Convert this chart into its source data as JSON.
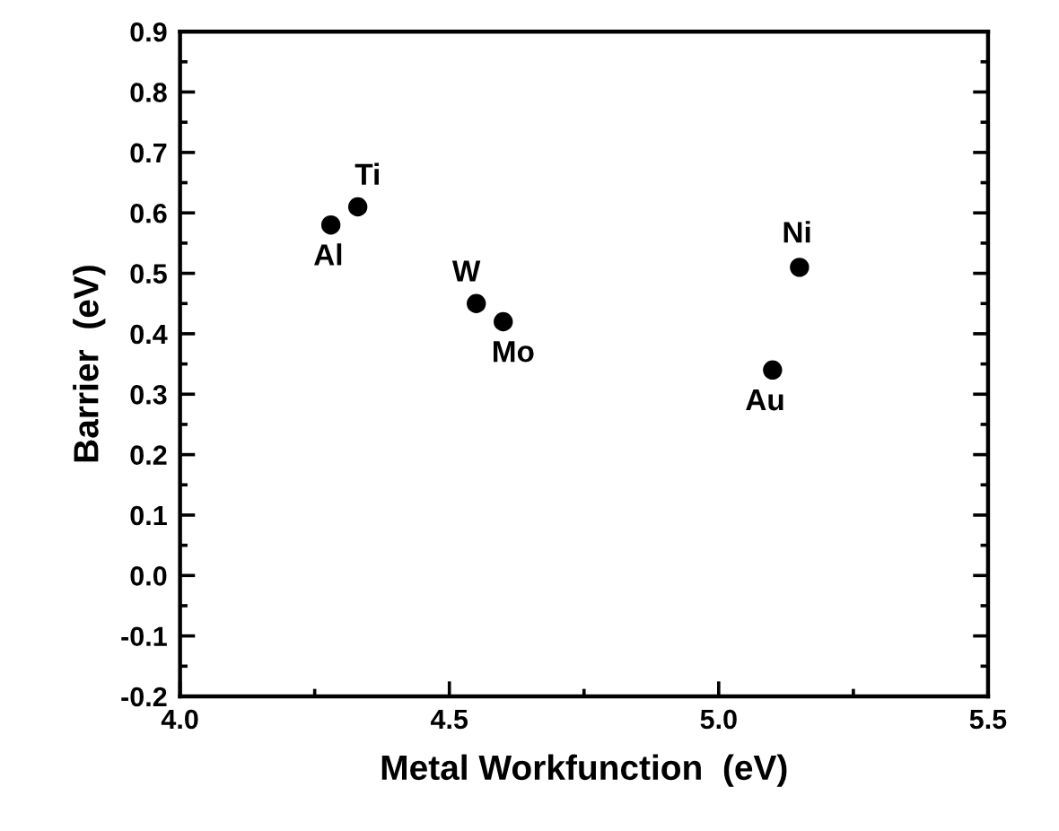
{
  "chart_data": {
    "type": "scatter",
    "xlabel": "Metal Workfunction  (eV)",
    "ylabel": "Barrier  (eV)",
    "x": [
      4.28,
      4.33,
      4.55,
      4.6,
      5.1,
      5.15
    ],
    "values": [
      0.58,
      0.61,
      0.45,
      0.42,
      0.34,
      0.51
    ],
    "color": "#000000",
    "marker": "circle",
    "xlim": [
      4.0,
      5.5
    ],
    "xticks": [
      {
        "value": 4,
        "label": "4.0"
      },
      4.5,
      {
        "value": 5,
        "label": "5.0"
      },
      5.5
    ],
    "ylim": [
      -0.2,
      0.9
    ],
    "yticks": [
      -0.2,
      -0.1,
      {
        "value": 0,
        "label": "0.0"
      },
      0.1,
      0.2,
      0.3,
      0.4,
      0.5,
      0.6,
      0.7,
      0.8,
      0.9
    ],
    "grid": false,
    "annotations": [
      {
        "text": "Al",
        "x": 4.28,
        "y": 0.58
      },
      {
        "text": "Ti",
        "x": 4.33,
        "y": 0.61
      },
      {
        "text": "W",
        "x": 4.55,
        "y": 0.45
      },
      {
        "text": "Mo",
        "x": 4.6,
        "y": 0.42
      },
      {
        "text": "Au",
        "x": 5.1,
        "y": 0.34
      },
      {
        "text": "Ni",
        "x": 5.15,
        "y": 0.51
      }
    ]
  }
}
